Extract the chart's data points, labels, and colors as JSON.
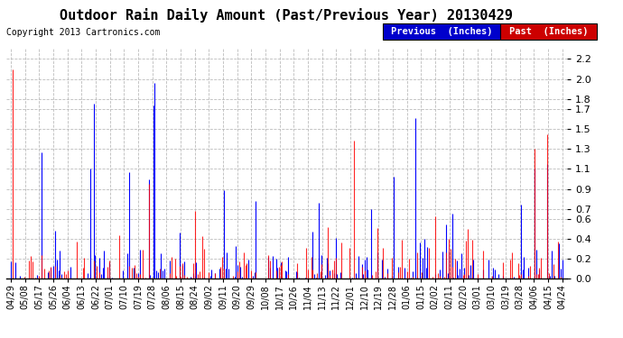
{
  "title": "Outdoor Rain Daily Amount (Past/Previous Year) 20130429",
  "copyright": "Copyright 2013 Cartronics.com",
  "legend_label_prev": "Previous  (Inches)",
  "legend_label_past": "Past  (Inches)",
  "blue_color": "#0000ff",
  "red_color": "#ff0000",
  "blue_legend_bg": "#0000cc",
  "red_legend_bg": "#cc0000",
  "bg_color": "#ffffff",
  "plot_bg_color": "#ffffff",
  "yticks": [
    0.0,
    0.2,
    0.4,
    0.6,
    0.7,
    0.9,
    1.1,
    1.3,
    1.5,
    1.7,
    1.8,
    2.0,
    2.2
  ],
  "ylim": [
    0.0,
    2.3
  ],
  "xtick_labels": [
    "04/29",
    "05/08",
    "05/17",
    "05/26",
    "06/04",
    "06/13",
    "06/22",
    "07/01",
    "07/10",
    "07/19",
    "07/28",
    "08/06",
    "08/15",
    "08/24",
    "09/02",
    "09/11",
    "09/20",
    "09/29",
    "10/08",
    "10/17",
    "10/26",
    "11/04",
    "11/13",
    "11/22",
    "12/01",
    "12/10",
    "12/19",
    "12/28",
    "01/06",
    "01/15",
    "02/02",
    "02/11",
    "02/20",
    "03/01",
    "03/10",
    "03/19",
    "03/28",
    "04/06",
    "04/15",
    "04/24"
  ],
  "num_days": 361,
  "title_fontsize": 11,
  "copyright_fontsize": 7,
  "tick_fontsize": 7,
  "ytick_fontsize": 8
}
